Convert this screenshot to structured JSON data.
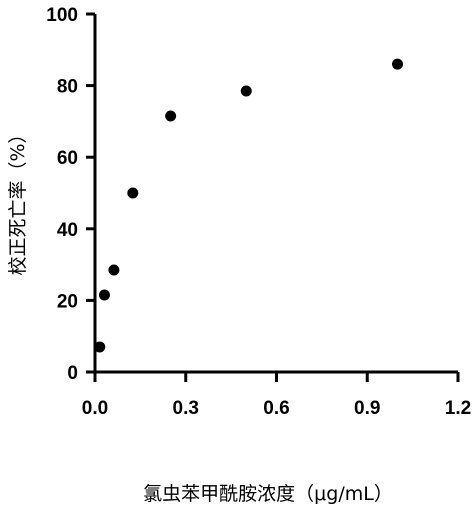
{
  "chart_data": {
    "type": "scatter",
    "title": "",
    "xlabel": "氯虫苯甲酰胺浓度（μg/mL）",
    "ylabel": "校正死亡率（%）",
    "xlim": [
      0,
      1.2
    ],
    "ylim": [
      0,
      100
    ],
    "xticks": [
      0.0,
      0.3,
      0.6,
      0.9,
      1.2
    ],
    "xtick_labels": [
      "0.0",
      "0.3",
      "0.6",
      "0.9",
      "1.2"
    ],
    "yticks": [
      0,
      20,
      40,
      60,
      80,
      100
    ],
    "ytick_labels": [
      "0",
      "20",
      "40",
      "60",
      "80",
      "100"
    ],
    "grid": false,
    "series": [
      {
        "x": [
          0.0156,
          0.03125,
          0.0625,
          0.125,
          0.25,
          0.5,
          1.0
        ],
        "y": [
          7.0,
          21.5,
          28.5,
          50.0,
          71.5,
          78.5,
          86.0
        ]
      }
    ],
    "colors": {
      "marker": "#000000",
      "axis": "#000000"
    }
  }
}
